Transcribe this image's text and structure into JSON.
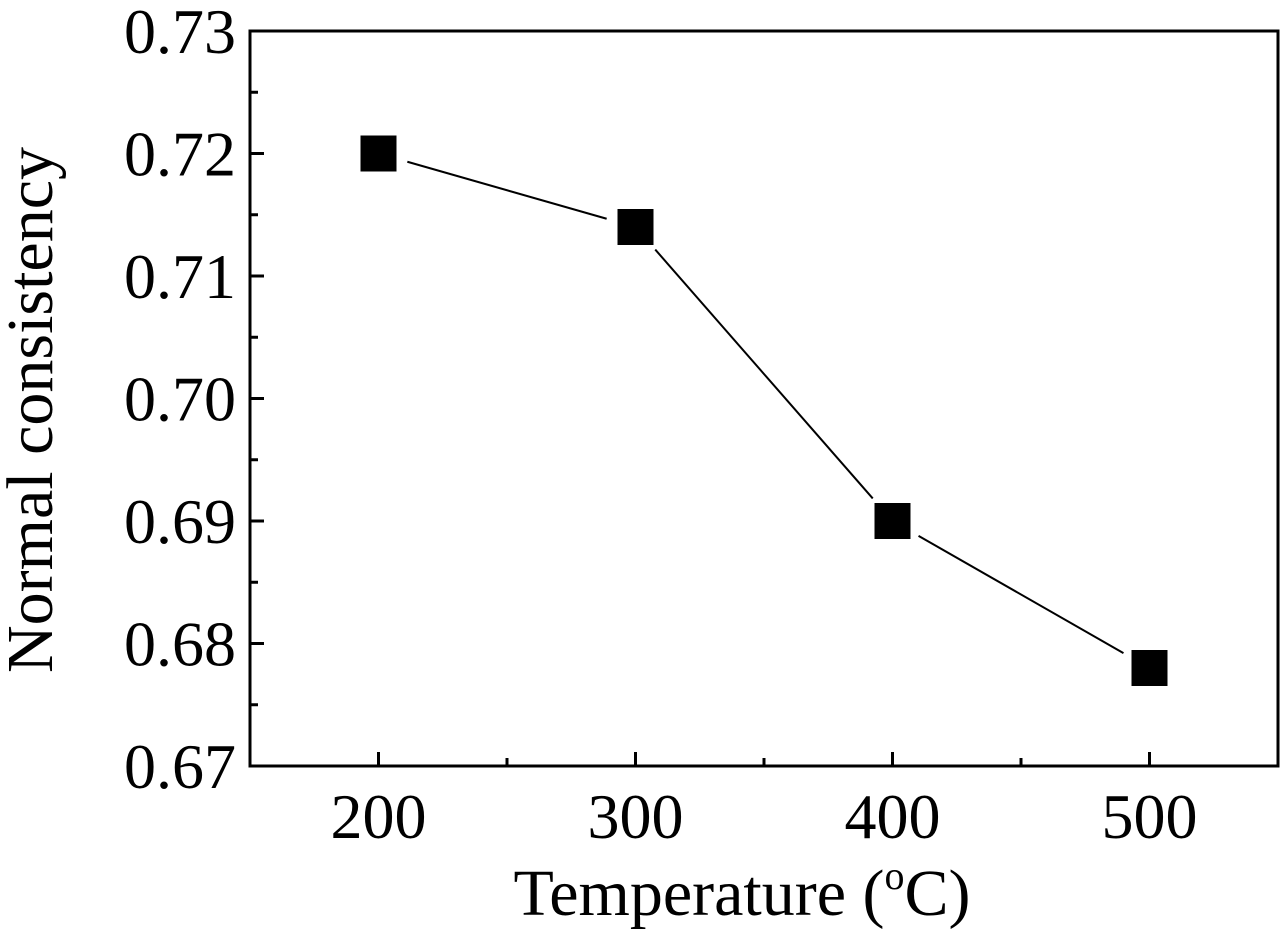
{
  "chart_data": {
    "type": "line",
    "xlabel": "Temperature (",
    "xlabel_sup": "o",
    "xlabel_suffix": "C)",
    "ylabel": "Normal consistency",
    "xlim": [
      150,
      550
    ],
    "ylim": [
      0.67,
      0.73
    ],
    "x_ticks": [
      200,
      300,
      400,
      500
    ],
    "x_tick_labels": [
      "200",
      "300",
      "400",
      "500"
    ],
    "x_minor_ticks": [
      250,
      350,
      450
    ],
    "y_ticks": [
      0.67,
      0.68,
      0.69,
      0.7,
      0.71,
      0.72,
      0.73
    ],
    "y_tick_labels": [
      "0.67",
      "0.68",
      "0.69",
      "0.70",
      "0.71",
      "0.72",
      "0.73"
    ],
    "y_minor_ticks": [
      0.675,
      0.685,
      0.695,
      0.705,
      0.715,
      0.725
    ],
    "grid": false,
    "legend": "none",
    "series": [
      {
        "marker": "square",
        "color": "#000000",
        "x": [
          200,
          300,
          400,
          500
        ],
        "y": [
          0.72,
          0.714,
          0.69,
          0.678
        ]
      }
    ]
  }
}
